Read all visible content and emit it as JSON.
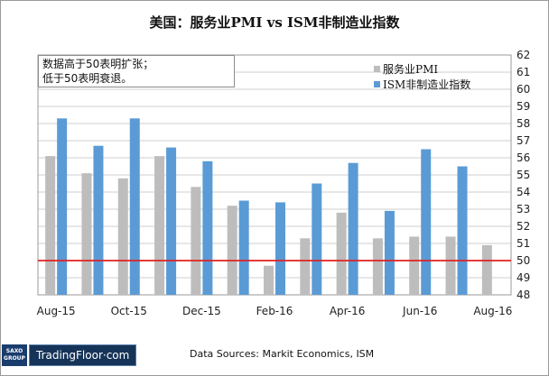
{
  "title": "美国：服务业PMI vs ISM非制造业指数",
  "note": [
    "数据高于50表明扩张；",
    "低于50表明衰退。"
  ],
  "footer": {
    "logo_top": "SAXO",
    "logo_bottom": "GROUP",
    "brand": "TradingFloor·com",
    "sources": "Data Sources: Markit Economics, ISM"
  },
  "colors": {
    "services_pmi": "#bdbdbd",
    "ism": "#5b9bd5",
    "reference_line": "#e02020",
    "grid": "#cfcfcf"
  },
  "chart_data": {
    "type": "bar",
    "categories": [
      "Aug-15",
      "Sep-15",
      "Oct-15",
      "Nov-15",
      "Dec-15",
      "Jan-16",
      "Feb-16",
      "Mar-16",
      "Apr-16",
      "May-16",
      "Jun-16",
      "Jul-16",
      "Aug-16"
    ],
    "x_tick_labels": [
      "Aug-15",
      "",
      "Oct-15",
      "",
      "Dec-15",
      "",
      "Feb-16",
      "",
      "Apr-16",
      "",
      "Jun-16",
      "",
      "Aug-16"
    ],
    "series": [
      {
        "name": "服务业PMI",
        "values": [
          56.1,
          55.1,
          54.8,
          56.1,
          54.3,
          53.2,
          49.7,
          51.3,
          52.8,
          51.3,
          51.4,
          51.4,
          50.9
        ]
      },
      {
        "name": "ISM非制造业指数",
        "values": [
          58.3,
          56.7,
          58.3,
          56.6,
          55.8,
          53.5,
          53.4,
          54.5,
          55.7,
          52.9,
          56.5,
          55.5,
          null
        ]
      }
    ],
    "y_axis_position": "right",
    "ylim": [
      48,
      62
    ],
    "y_ticks": [
      48,
      49,
      50,
      51,
      52,
      53,
      54,
      55,
      56,
      57,
      58,
      59,
      60,
      61,
      62
    ],
    "reference_line": 50,
    "grid": true,
    "legend_position": "top-right"
  }
}
